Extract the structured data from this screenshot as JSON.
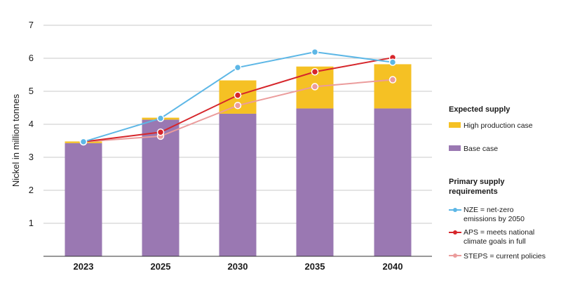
{
  "chart_data": {
    "type": "bar",
    "title": "",
    "ylabel": "Nickel in million tonnes",
    "xlabel": "",
    "ylim": [
      0,
      7
    ],
    "yticks": [
      1,
      2,
      3,
      4,
      5,
      6,
      7
    ],
    "grid": true,
    "categories": [
      "2023",
      "2025",
      "2030",
      "2035",
      "2040"
    ],
    "bar_series": [
      {
        "name": "Base case",
        "color": "#9a78b2",
        "values": [
          3.43,
          4.14,
          4.32,
          4.48,
          4.48
        ]
      },
      {
        "name": "High production case",
        "color": "#f5c124",
        "values": [
          0.05,
          0.06,
          1.01,
          1.27,
          1.34
        ]
      }
    ],
    "line_series": [
      {
        "name": "NZE = net-zero emissions by 2050",
        "color": "#5db7e6",
        "values": [
          3.47,
          4.18,
          5.72,
          6.19,
          5.88
        ]
      },
      {
        "name": "APS = meets national climate goals in full",
        "color": "#d6262b",
        "values": [
          3.47,
          3.76,
          4.88,
          5.59,
          6.02
        ]
      },
      {
        "name": "STEPS = current policies",
        "color": "#eb9c9c",
        "values": [
          3.47,
          3.64,
          4.57,
          5.14,
          5.35
        ]
      }
    ],
    "legend": {
      "position": "right",
      "supply_title": "Expected supply",
      "requirements_title": "Primary supply requirements",
      "entries": {
        "high": "High production case",
        "base": "Base case",
        "nze": "NZE = net-zero emissions by 2050",
        "aps": "APS = meets national climate goals in full",
        "steps": "STEPS = current policies"
      }
    }
  }
}
